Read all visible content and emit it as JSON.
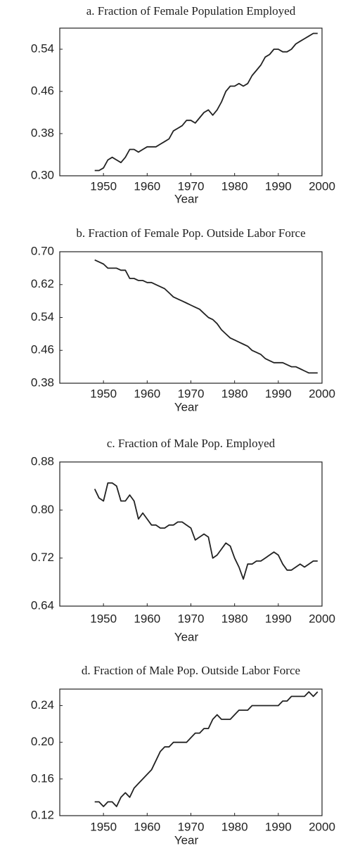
{
  "chart_data": [
    {
      "type": "line",
      "title": "a. Fraction of Female Population Employed",
      "xlabel": "Year",
      "x": [
        1948,
        1949,
        1950,
        1951,
        1952,
        1953,
        1954,
        1955,
        1956,
        1957,
        1958,
        1959,
        1960,
        1961,
        1962,
        1963,
        1964,
        1965,
        1966,
        1967,
        1968,
        1969,
        1970,
        1971,
        1972,
        1973,
        1974,
        1975,
        1976,
        1977,
        1978,
        1979,
        1980,
        1981,
        1982,
        1983,
        1984,
        1985,
        1986,
        1987,
        1988,
        1989,
        1990,
        1991,
        1992,
        1993,
        1994,
        1995,
        1996,
        1997,
        1998,
        1999
      ],
      "values": [
        0.31,
        0.31,
        0.315,
        0.33,
        0.335,
        0.33,
        0.325,
        0.335,
        0.35,
        0.35,
        0.345,
        0.35,
        0.355,
        0.355,
        0.355,
        0.36,
        0.365,
        0.37,
        0.385,
        0.39,
        0.395,
        0.405,
        0.405,
        0.4,
        0.41,
        0.42,
        0.425,
        0.415,
        0.425,
        0.44,
        0.46,
        0.47,
        0.47,
        0.475,
        0.47,
        0.475,
        0.49,
        0.5,
        0.51,
        0.525,
        0.53,
        0.54,
        0.54,
        0.535,
        0.535,
        0.54,
        0.55,
        0.555,
        0.56,
        0.565,
        0.57,
        0.57
      ],
      "color": "#222222",
      "xlim": [
        1940,
        2000
      ],
      "xticks": [
        1950,
        1960,
        1970,
        1980,
        1990,
        2000
      ],
      "ylim": [
        0.3,
        0.58
      ],
      "yticks": [
        {
          "value": 0.3,
          "label": "0.30"
        },
        0.38,
        0.46,
        0.54
      ]
    },
    {
      "type": "line",
      "title": "b. Fraction of Female Pop. Outside Labor Force",
      "xlabel": "Year",
      "x": [
        1948,
        1949,
        1950,
        1951,
        1952,
        1953,
        1954,
        1955,
        1956,
        1957,
        1958,
        1959,
        1960,
        1961,
        1962,
        1963,
        1964,
        1965,
        1966,
        1967,
        1968,
        1969,
        1970,
        1971,
        1972,
        1973,
        1974,
        1975,
        1976,
        1977,
        1978,
        1979,
        1980,
        1981,
        1982,
        1983,
        1984,
        1985,
        1986,
        1987,
        1988,
        1989,
        1990,
        1991,
        1992,
        1993,
        1994,
        1995,
        1996,
        1997,
        1998,
        1999
      ],
      "values": [
        0.68,
        0.675,
        0.67,
        0.66,
        0.66,
        0.66,
        0.655,
        0.655,
        0.635,
        0.635,
        0.63,
        0.63,
        0.625,
        0.625,
        0.62,
        0.615,
        0.61,
        0.6,
        0.59,
        0.585,
        0.58,
        0.575,
        0.57,
        0.565,
        0.56,
        0.55,
        0.54,
        0.535,
        0.525,
        0.51,
        0.5,
        0.49,
        0.485,
        0.48,
        0.475,
        0.47,
        0.46,
        0.455,
        0.45,
        0.44,
        0.435,
        0.43,
        0.43,
        0.43,
        0.425,
        0.42,
        0.42,
        0.415,
        0.41,
        0.405,
        0.405,
        0.405
      ],
      "color": "#222222",
      "xlim": [
        1940,
        2000
      ],
      "xticks": [
        1950,
        1960,
        1970,
        1980,
        1990,
        2000
      ],
      "ylim": [
        0.38,
        0.7
      ],
      "yticks": [
        0.38,
        0.46,
        0.54,
        0.62,
        {
          "value": 0.7,
          "label": "0.70"
        }
      ]
    },
    {
      "type": "line",
      "title": "c. Fraction of Male Pop. Employed",
      "xlabel": "Year",
      "x": [
        1948,
        1949,
        1950,
        1951,
        1952,
        1953,
        1954,
        1955,
        1956,
        1957,
        1958,
        1959,
        1960,
        1961,
        1962,
        1963,
        1964,
        1965,
        1966,
        1967,
        1968,
        1969,
        1970,
        1971,
        1972,
        1973,
        1974,
        1975,
        1976,
        1977,
        1978,
        1979,
        1980,
        1981,
        1982,
        1983,
        1984,
        1985,
        1986,
        1987,
        1988,
        1989,
        1990,
        1991,
        1992,
        1993,
        1994,
        1995,
        1996,
        1997,
        1998,
        1999
      ],
      "values": [
        0.835,
        0.82,
        0.815,
        0.845,
        0.845,
        0.84,
        0.815,
        0.815,
        0.825,
        0.815,
        0.785,
        0.795,
        0.785,
        0.775,
        0.775,
        0.77,
        0.77,
        0.775,
        0.775,
        0.78,
        0.78,
        0.775,
        0.77,
        0.75,
        0.755,
        0.76,
        0.755,
        0.72,
        0.725,
        0.735,
        0.745,
        0.74,
        0.72,
        0.705,
        0.685,
        0.71,
        0.71,
        0.715,
        0.715,
        0.72,
        0.725,
        0.73,
        0.725,
        0.71,
        0.7,
        0.7,
        0.705,
        0.71,
        0.705,
        0.71,
        0.715,
        0.715
      ],
      "color": "#222222",
      "xlim": [
        1940,
        2000
      ],
      "xticks": [
        1950,
        1960,
        1970,
        1980,
        1990,
        2000
      ],
      "ylim": [
        0.64,
        0.88
      ],
      "yticks": [
        0.64,
        0.72,
        {
          "value": 0.8,
          "label": "0.80"
        },
        0.88
      ]
    },
    {
      "type": "line",
      "title": "d. Fraction of Male Pop. Outside Labor Force",
      "xlabel": "Year",
      "x": [
        1948,
        1949,
        1950,
        1951,
        1952,
        1953,
        1954,
        1955,
        1956,
        1957,
        1958,
        1959,
        1960,
        1961,
        1962,
        1963,
        1964,
        1965,
        1966,
        1967,
        1968,
        1969,
        1970,
        1971,
        1972,
        1973,
        1974,
        1975,
        1976,
        1977,
        1978,
        1979,
        1980,
        1981,
        1982,
        1983,
        1984,
        1985,
        1986,
        1987,
        1988,
        1989,
        1990,
        1991,
        1992,
        1993,
        1994,
        1995,
        1996,
        1997,
        1998,
        1999
      ],
      "values": [
        0.135,
        0.135,
        0.13,
        0.135,
        0.135,
        0.13,
        0.14,
        0.145,
        0.14,
        0.15,
        0.155,
        0.16,
        0.165,
        0.17,
        0.18,
        0.19,
        0.195,
        0.195,
        0.2,
        0.2,
        0.2,
        0.2,
        0.205,
        0.21,
        0.21,
        0.215,
        0.215,
        0.225,
        0.23,
        0.225,
        0.225,
        0.225,
        0.23,
        0.235,
        0.235,
        0.235,
        0.24,
        0.24,
        0.24,
        0.24,
        0.24,
        0.24,
        0.24,
        0.245,
        0.245,
        0.25,
        0.25,
        0.25,
        0.25,
        0.255,
        0.25,
        0.255
      ],
      "color": "#222222",
      "xlim": [
        1940,
        2000
      ],
      "xticks": [
        1950,
        1960,
        1970,
        1980,
        1990,
        2000
      ],
      "ylim": [
        0.12,
        0.258
      ],
      "yticks": [
        0.12,
        0.16,
        {
          "value": 0.2,
          "label": "0.20"
        },
        0.24
      ]
    }
  ]
}
